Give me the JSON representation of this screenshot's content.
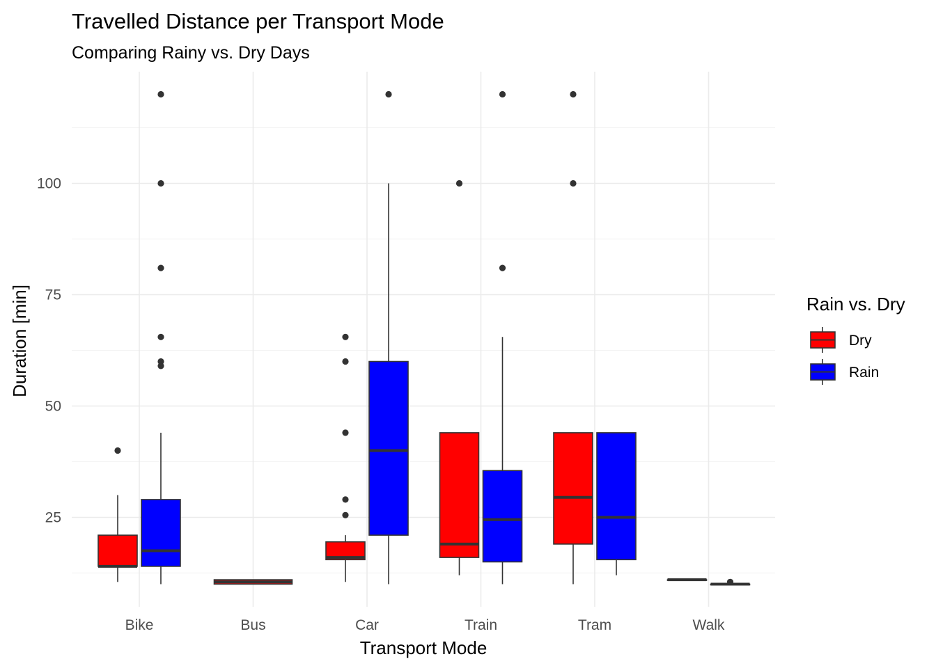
{
  "colors": {
    "Dry": "#ff0000",
    "Rain": "#0000ff",
    "box_outline": "#333333",
    "grid": "#ebebeb"
  },
  "chart_data": {
    "type": "boxplot",
    "title": "Travelled Distance per Transport Mode",
    "subtitle": "Comparing Rainy vs. Dry Days",
    "xlabel": "Transport Mode",
    "ylabel": "Duration [min]",
    "categories": [
      "Bike",
      "Bus",
      "Car",
      "Train",
      "Tram",
      "Walk"
    ],
    "y_ticks": [
      25,
      50,
      75,
      100
    ],
    "ylim": [
      7,
      126
    ],
    "grid": true,
    "legend": {
      "title": "Rain vs. Dry",
      "position": "right",
      "entries": [
        "Dry",
        "Rain"
      ]
    },
    "series": [
      {
        "name": "Dry",
        "boxes": [
          {
            "category": "Bike",
            "lower": 10.5,
            "q1": 14,
            "median": 14,
            "q3": 21,
            "upper": 30,
            "outliers": [
              40
            ]
          },
          {
            "category": "Bus",
            "lower": 10,
            "q1": 10,
            "median": 10.5,
            "q3": 11,
            "upper": 11,
            "outliers": []
          },
          {
            "category": "Car",
            "lower": 10.5,
            "q1": 15.5,
            "median": 16,
            "q3": 19.5,
            "upper": 21,
            "outliers": [
              25.5,
              29,
              44,
              60,
              65.5
            ]
          },
          {
            "category": "Train",
            "lower": 12,
            "q1": 16,
            "median": 19,
            "q3": 44,
            "upper": 44,
            "outliers": [
              100
            ]
          },
          {
            "category": "Tram",
            "lower": 10,
            "q1": 19,
            "median": 29.5,
            "q3": 44,
            "upper": 44,
            "outliers": [
              100,
              120
            ]
          },
          {
            "category": "Walk",
            "lower": 11,
            "q1": 11,
            "median": 11,
            "q3": 11,
            "upper": 11,
            "outliers": []
          }
        ]
      },
      {
        "name": "Rain",
        "boxes": [
          {
            "category": "Bike",
            "lower": 10,
            "q1": 14,
            "median": 17.5,
            "q3": 29,
            "upper": 44,
            "outliers": [
              59,
              60,
              65.5,
              81,
              100,
              120
            ]
          },
          {
            "category": "Car",
            "lower": 10,
            "q1": 21,
            "median": 40,
            "q3": 60,
            "upper": 100,
            "outliers": [
              120
            ]
          },
          {
            "category": "Train",
            "lower": 10,
            "q1": 15,
            "median": 24.5,
            "q3": 35.5,
            "upper": 65.5,
            "outliers": [
              81,
              120
            ]
          },
          {
            "category": "Tram",
            "lower": 12,
            "q1": 15.5,
            "median": 25,
            "q3": 44,
            "upper": 44,
            "outliers": []
          },
          {
            "category": "Walk",
            "lower": 10,
            "q1": 10,
            "median": 10,
            "q3": 10,
            "upper": 10,
            "outliers": [
              10.5
            ]
          }
        ]
      }
    ]
  }
}
